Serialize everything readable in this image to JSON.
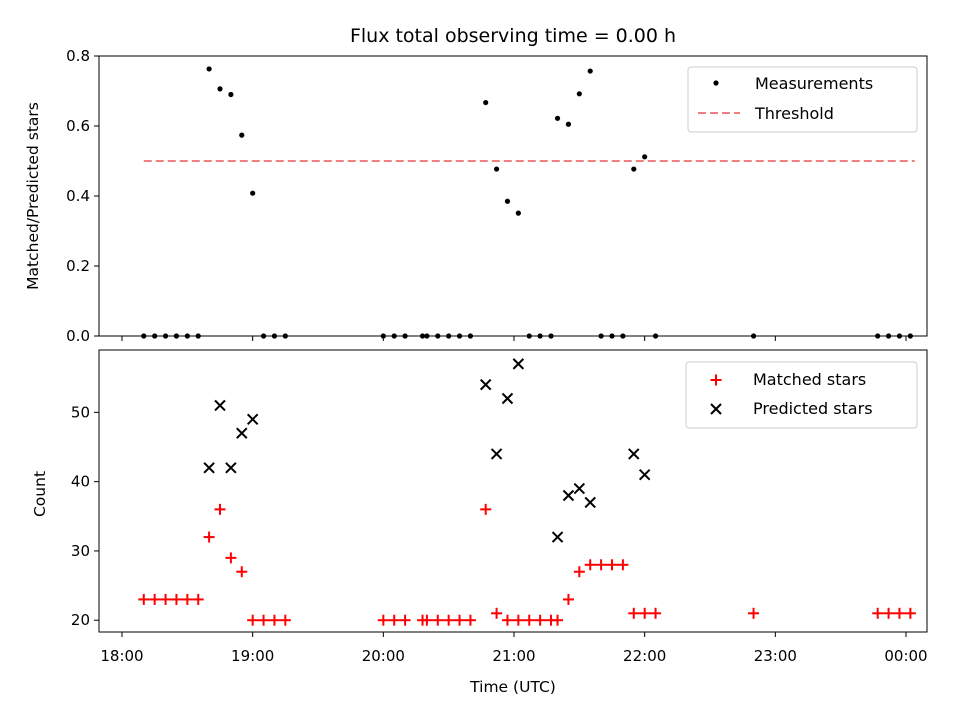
{
  "chart_data": [
    {
      "type": "scatter",
      "title": "Flux total observing time = 0.00 h",
      "xlabel": "",
      "ylabel": "Matched/Predicted stars",
      "ylim": [
        0,
        0.8
      ],
      "yticks": [
        "0.0",
        "0.2",
        "0.4",
        "0.6",
        "0.8"
      ],
      "legend_position": "top-right",
      "series": [
        {
          "name": "Measurements",
          "color": "#000000",
          "marker": "dot",
          "points": [
            [
              "18:10",
              0
            ],
            [
              "18:15",
              0
            ],
            [
              "18:20",
              0
            ],
            [
              "18:25",
              0
            ],
            [
              "18:30",
              0
            ],
            [
              "18:35",
              0
            ],
            [
              "18:40",
              0.763
            ],
            [
              "18:45",
              0.706
            ],
            [
              "18:50",
              0.69
            ],
            [
              "18:55",
              0.574
            ],
            [
              "19:00",
              0.408
            ],
            [
              "19:05",
              0
            ],
            [
              "19:10",
              0
            ],
            [
              "19:15",
              0
            ],
            [
              "20:00",
              0
            ],
            [
              "20:05",
              0
            ],
            [
              "20:10",
              0
            ],
            [
              "20:18",
              0
            ],
            [
              "20:20",
              0
            ],
            [
              "20:25",
              0
            ],
            [
              "20:30",
              0
            ],
            [
              "20:35",
              0
            ],
            [
              "20:40",
              0
            ],
            [
              "20:47",
              0.667
            ],
            [
              "20:52",
              0.477
            ],
            [
              "20:57",
              0.385
            ],
            [
              "21:02",
              0.351
            ],
            [
              "21:07",
              0
            ],
            [
              "21:12",
              0
            ],
            [
              "21:17",
              0
            ],
            [
              "21:20",
              0.622
            ],
            [
              "21:25",
              0.605
            ],
            [
              "21:30",
              0.692
            ],
            [
              "21:35",
              0.757
            ],
            [
              "21:40",
              0
            ],
            [
              "21:45",
              0
            ],
            [
              "21:50",
              0
            ],
            [
              "21:55",
              0.477
            ],
            [
              "22:00",
              0.512
            ],
            [
              "22:05",
              0
            ],
            [
              "22:50",
              0
            ],
            [
              "23:47",
              0
            ],
            [
              "23:52",
              0
            ],
            [
              "23:57",
              0
            ],
            [
              "00:02",
              0
            ]
          ]
        },
        {
          "name": "Threshold",
          "color": "#f08080",
          "marker": "dashed-line",
          "points": [
            [
              "18:10",
              0.5
            ],
            [
              "00:04",
              0.5
            ]
          ]
        }
      ]
    },
    {
      "type": "scatter",
      "title": "",
      "xlabel": "Time (UTC)",
      "ylabel": "Count",
      "ylim": [
        18.3,
        59
      ],
      "yticks": [
        "20",
        "30",
        "40",
        "50"
      ],
      "xticks": [
        "18:00",
        "19:00",
        "20:00",
        "21:00",
        "22:00",
        "23:00",
        "00:00"
      ],
      "legend_position": "top-right",
      "series": [
        {
          "name": "Matched stars",
          "color": "#ff0000",
          "marker": "plus",
          "points": [
            [
              "18:10",
              23
            ],
            [
              "18:15",
              23
            ],
            [
              "18:20",
              23
            ],
            [
              "18:25",
              23
            ],
            [
              "18:30",
              23
            ],
            [
              "18:35",
              23
            ],
            [
              "18:40",
              32
            ],
            [
              "18:45",
              36
            ],
            [
              "18:50",
              29
            ],
            [
              "18:55",
              27
            ],
            [
              "19:00",
              20
            ],
            [
              "19:05",
              20
            ],
            [
              "19:10",
              20
            ],
            [
              "19:15",
              20
            ],
            [
              "20:00",
              20
            ],
            [
              "20:05",
              20
            ],
            [
              "20:10",
              20
            ],
            [
              "20:18",
              20
            ],
            [
              "20:20",
              20
            ],
            [
              "20:25",
              20
            ],
            [
              "20:30",
              20
            ],
            [
              "20:35",
              20
            ],
            [
              "20:40",
              20
            ],
            [
              "20:47",
              36
            ],
            [
              "20:52",
              21
            ],
            [
              "20:57",
              20
            ],
            [
              "21:02",
              20
            ],
            [
              "21:07",
              20
            ],
            [
              "21:12",
              20
            ],
            [
              "21:17",
              20
            ],
            [
              "21:20",
              20
            ],
            [
              "21:25",
              23
            ],
            [
              "21:30",
              27
            ],
            [
              "21:35",
              28
            ],
            [
              "21:40",
              28
            ],
            [
              "21:45",
              28
            ],
            [
              "21:50",
              28
            ],
            [
              "21:55",
              21
            ],
            [
              "22:00",
              21
            ],
            [
              "22:05",
              21
            ],
            [
              "22:50",
              21
            ],
            [
              "23:47",
              21
            ],
            [
              "23:52",
              21
            ],
            [
              "23:57",
              21
            ],
            [
              "00:02",
              21
            ]
          ]
        },
        {
          "name": "Predicted stars",
          "color": "#000000",
          "marker": "x",
          "points": [
            [
              "18:40",
              42
            ],
            [
              "18:45",
              51
            ],
            [
              "18:50",
              42
            ],
            [
              "18:55",
              47
            ],
            [
              "19:00",
              49
            ],
            [
              "20:47",
              54
            ],
            [
              "20:52",
              44
            ],
            [
              "20:57",
              52
            ],
            [
              "21:02",
              57
            ],
            [
              "21:20",
              32
            ],
            [
              "21:25",
              38
            ],
            [
              "21:30",
              39
            ],
            [
              "21:35",
              37
            ],
            [
              "21:55",
              44
            ],
            [
              "22:00",
              41
            ]
          ]
        }
      ]
    }
  ]
}
